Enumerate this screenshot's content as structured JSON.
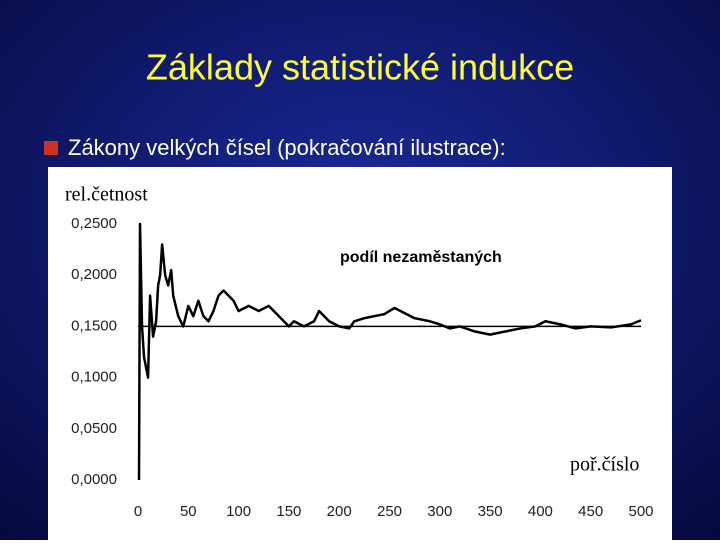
{
  "slide": {
    "title": "Základy statistické indukce",
    "bullet": "Zákony velkých čísel (pokračování ilustrace):"
  },
  "chart_data": {
    "type": "line",
    "y_label": "rel.četnost",
    "x_label": "poř.číslo",
    "series": [
      {
        "name": "podíl nezaměstaných",
        "color": "#000000",
        "x": [
          1,
          2,
          4,
          6,
          10,
          12,
          15,
          18,
          20,
          22,
          24,
          27,
          30,
          33,
          35,
          40,
          45,
          50,
          55,
          60,
          65,
          70,
          75,
          80,
          85,
          90,
          95,
          100,
          110,
          120,
          130,
          140,
          150,
          155,
          165,
          175,
          180,
          190,
          200,
          210,
          215,
          225,
          235,
          245,
          255,
          265,
          275,
          290,
          300,
          310,
          320,
          335,
          350,
          365,
          380,
          395,
          405,
          420,
          435,
          450,
          470,
          490,
          500
        ],
        "values": [
          0.0,
          0.25,
          0.15,
          0.12,
          0.1,
          0.18,
          0.14,
          0.155,
          0.19,
          0.2,
          0.23,
          0.2,
          0.19,
          0.205,
          0.18,
          0.16,
          0.15,
          0.17,
          0.16,
          0.175,
          0.16,
          0.155,
          0.165,
          0.18,
          0.185,
          0.18,
          0.175,
          0.165,
          0.17,
          0.165,
          0.17,
          0.16,
          0.15,
          0.155,
          0.15,
          0.155,
          0.165,
          0.155,
          0.15,
          0.148,
          0.155,
          0.158,
          0.16,
          0.162,
          0.168,
          0.163,
          0.158,
          0.155,
          0.152,
          0.148,
          0.15,
          0.145,
          0.142,
          0.145,
          0.148,
          0.15,
          0.155,
          0.152,
          0.148,
          0.15,
          0.149,
          0.152,
          0.156
        ]
      }
    ],
    "reference_line": 0.15,
    "xlim": [
      0,
      500
    ],
    "xticks": [
      0,
      50,
      100,
      150,
      200,
      250,
      300,
      350,
      400,
      450,
      500
    ],
    "ylim": [
      0,
      0.25
    ],
    "yticks": [
      {
        "value": 0,
        "label": "0,0000"
      },
      {
        "value": 0.05,
        "label": "0,0500"
      },
      {
        "value": 0.1,
        "label": "0,1000"
      },
      {
        "value": 0.15,
        "label": "0,1500"
      },
      {
        "value": 0.2,
        "label": "0,2000"
      },
      {
        "value": 0.25,
        "label": "0,2500"
      }
    ]
  }
}
